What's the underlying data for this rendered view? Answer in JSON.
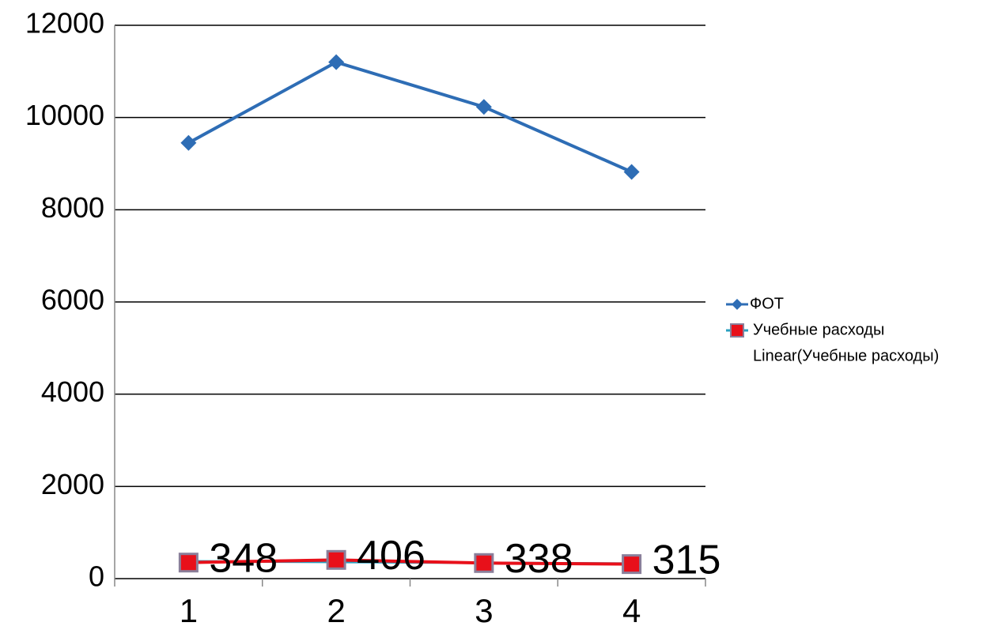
{
  "chart_data": {
    "type": "line",
    "categories": [
      "1",
      "2",
      "3",
      "4"
    ],
    "series": [
      {
        "name": "ФОТ",
        "color": "#2e6db5",
        "marker": "diamond",
        "values": [
          9450,
          11200,
          10230,
          8820
        ]
      },
      {
        "name": "Учебные расходы",
        "color": "#e8101a",
        "marker": "square",
        "values": [
          348,
          406,
          338,
          315
        ],
        "data_labels": true
      },
      {
        "name": "Linear(Учебные расходы)",
        "color": "#2aa0c0",
        "marker": "none",
        "values": [
          377,
          360,
          343,
          327
        ]
      }
    ],
    "ylim": [
      0,
      12000
    ],
    "yticks": [
      0,
      2000,
      4000,
      6000,
      8000,
      10000,
      12000
    ],
    "grid": true,
    "legend": "right"
  }
}
